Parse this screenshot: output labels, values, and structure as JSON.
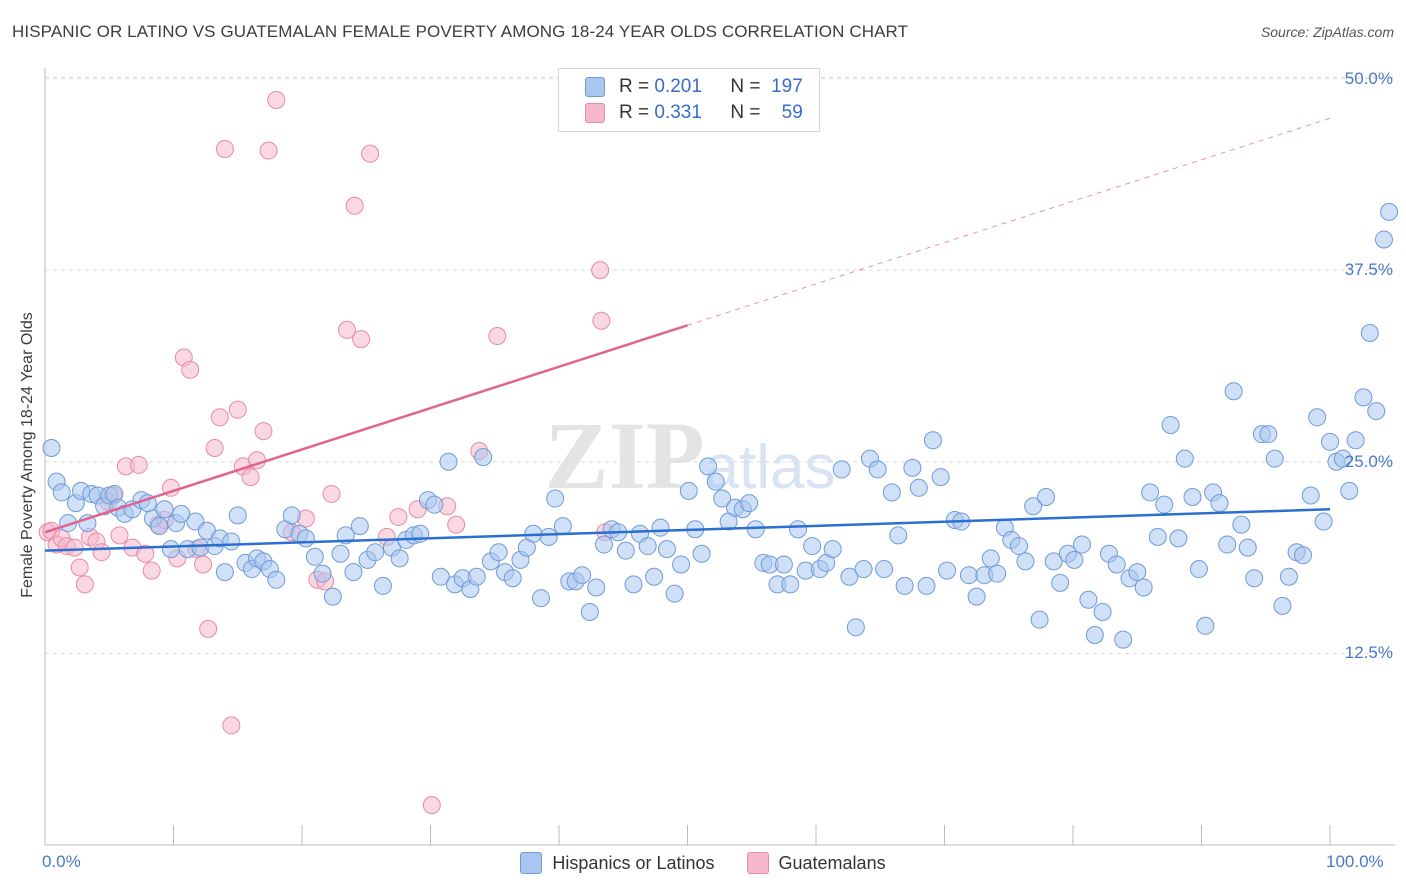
{
  "title": "HISPANIC OR LATINO VS GUATEMALAN FEMALE POVERTY AMONG 18-24 YEAR OLDS CORRELATION CHART",
  "source": "Source: ZipAtlas.com",
  "watermark": "ZIPatlas",
  "legend": {
    "r_label": "R =",
    "n_label": "N =",
    "rows": [
      {
        "r": "0.201",
        "n": "197",
        "color": "#a9c6f0"
      },
      {
        "r": "0.331",
        "n": "59",
        "color": "#f5b8cb"
      }
    ]
  },
  "bottom_legend": [
    {
      "label": "Hispanics or Latinos",
      "color": "#a9c6f0"
    },
    {
      "label": "Guatemalans",
      "color": "#f5b8cb"
    }
  ],
  "colors": {
    "blue_fill": "#a9c6f0",
    "blue_stroke": "#6f9bd8",
    "blue_line": "#2b6fd0",
    "pink_fill": "#f5b8cb",
    "pink_stroke": "#e88aa8",
    "pink_line": "#e0648f",
    "tick_text": "#4a78c8"
  },
  "chart_data": {
    "type": "scatter",
    "title": "HISPANIC OR LATINO VS GUATEMALAN FEMALE POVERTY AMONG 18-24 YEAR OLDS CORRELATION CHART",
    "xlabel": "",
    "ylabel": "Female Poverty Among 18-24 Year Olds",
    "xlim": [
      0,
      100
    ],
    "ylim": [
      0,
      52
    ],
    "x_tick_labels": [
      "0.0%",
      "100.0%"
    ],
    "y_ticks": [
      12.5,
      25.0,
      37.5,
      50.0
    ],
    "y_tick_labels": [
      "12.5%",
      "25.0%",
      "37.5%",
      "50.0%"
    ],
    "grid": "horizontal dashed",
    "legend_position": "top-center",
    "series": [
      {
        "name": "Hispanics or Latinos",
        "r": 0.201,
        "n": 197,
        "trend": [
          [
            0,
            19.2
          ],
          [
            100,
            21.9
          ]
        ],
        "points": [
          [
            0.5,
            25.9
          ],
          [
            0.9,
            23.7
          ],
          [
            1.3,
            23.0
          ],
          [
            1.8,
            21.0
          ],
          [
            2.4,
            22.3
          ],
          [
            2.8,
            23.1
          ],
          [
            3.3,
            21.0
          ],
          [
            3.6,
            22.9
          ],
          [
            4.1,
            22.8
          ],
          [
            4.6,
            22.1
          ],
          [
            5.0,
            22.8
          ],
          [
            5.4,
            22.9
          ],
          [
            5.7,
            22.0
          ],
          [
            6.2,
            21.6
          ],
          [
            6.8,
            21.9
          ],
          [
            7.5,
            22.5
          ],
          [
            8.0,
            22.3
          ],
          [
            8.4,
            21.3
          ],
          [
            8.9,
            20.8
          ],
          [
            9.3,
            21.9
          ],
          [
            9.8,
            19.3
          ],
          [
            10.2,
            21.0
          ],
          [
            10.6,
            21.6
          ],
          [
            11.1,
            19.3
          ],
          [
            11.7,
            21.1
          ],
          [
            12.1,
            19.4
          ],
          [
            12.6,
            20.5
          ],
          [
            13.2,
            19.5
          ],
          [
            13.6,
            20.0
          ],
          [
            14.0,
            17.8
          ],
          [
            14.5,
            19.8
          ],
          [
            15.0,
            21.5
          ],
          [
            15.6,
            18.4
          ],
          [
            16.1,
            18.0
          ],
          [
            16.5,
            18.7
          ],
          [
            17.0,
            18.5
          ],
          [
            17.5,
            18.0
          ],
          [
            18.0,
            17.3
          ],
          [
            18.7,
            20.6
          ],
          [
            19.2,
            21.5
          ],
          [
            19.8,
            20.3
          ],
          [
            20.3,
            20.0
          ],
          [
            21.0,
            18.8
          ],
          [
            21.6,
            17.7
          ],
          [
            22.4,
            16.2
          ],
          [
            23.0,
            19.0
          ],
          [
            23.4,
            20.2
          ],
          [
            24.0,
            17.8
          ],
          [
            24.5,
            20.8
          ],
          [
            25.1,
            18.6
          ],
          [
            25.7,
            19.1
          ],
          [
            26.3,
            16.9
          ],
          [
            27.0,
            19.4
          ],
          [
            27.6,
            18.7
          ],
          [
            28.1,
            19.9
          ],
          [
            28.7,
            20.2
          ],
          [
            29.2,
            20.3
          ],
          [
            29.8,
            22.5
          ],
          [
            30.3,
            22.2
          ],
          [
            30.8,
            17.5
          ],
          [
            31.4,
            25.0
          ],
          [
            31.9,
            17.0
          ],
          [
            32.5,
            17.4
          ],
          [
            33.1,
            16.7
          ],
          [
            33.6,
            17.5
          ],
          [
            34.1,
            25.3
          ],
          [
            34.7,
            18.5
          ],
          [
            35.3,
            19.1
          ],
          [
            35.8,
            17.8
          ],
          [
            36.4,
            17.4
          ],
          [
            37.0,
            18.6
          ],
          [
            37.5,
            19.4
          ],
          [
            38.0,
            20.3
          ],
          [
            38.6,
            16.1
          ],
          [
            39.2,
            20.1
          ],
          [
            39.7,
            22.6
          ],
          [
            40.3,
            20.8
          ],
          [
            40.8,
            17.2
          ],
          [
            41.3,
            17.2
          ],
          [
            41.8,
            17.6
          ],
          [
            42.4,
            15.2
          ],
          [
            42.9,
            16.8
          ],
          [
            43.5,
            19.6
          ],
          [
            44.1,
            20.6
          ],
          [
            44.6,
            20.4
          ],
          [
            45.2,
            19.2
          ],
          [
            45.8,
            17.0
          ],
          [
            46.3,
            20.3
          ],
          [
            46.9,
            19.5
          ],
          [
            47.4,
            17.5
          ],
          [
            47.9,
            20.7
          ],
          [
            48.4,
            19.3
          ],
          [
            49.0,
            16.4
          ],
          [
            49.5,
            18.3
          ],
          [
            50.1,
            23.1
          ],
          [
            50.6,
            20.6
          ],
          [
            51.1,
            19.0
          ],
          [
            51.6,
            24.7
          ],
          [
            52.2,
            23.7
          ],
          [
            52.7,
            22.6
          ],
          [
            53.2,
            21.1
          ],
          [
            53.7,
            22.0
          ],
          [
            54.3,
            21.9
          ],
          [
            54.8,
            22.3
          ],
          [
            55.3,
            20.6
          ],
          [
            55.9,
            18.4
          ],
          [
            56.4,
            18.3
          ],
          [
            57.0,
            17.0
          ],
          [
            57.5,
            18.3
          ],
          [
            58.0,
            17.0
          ],
          [
            58.6,
            20.6
          ],
          [
            59.2,
            17.9
          ],
          [
            59.7,
            19.5
          ],
          [
            60.3,
            18.0
          ],
          [
            60.8,
            18.4
          ],
          [
            61.3,
            19.3
          ],
          [
            62.0,
            24.5
          ],
          [
            62.6,
            17.5
          ],
          [
            63.1,
            14.2
          ],
          [
            63.7,
            18.0
          ],
          [
            64.2,
            25.2
          ],
          [
            64.8,
            24.5
          ],
          [
            65.3,
            18.0
          ],
          [
            65.9,
            23.0
          ],
          [
            66.4,
            20.2
          ],
          [
            66.9,
            16.9
          ],
          [
            67.5,
            24.6
          ],
          [
            68.0,
            23.3
          ],
          [
            68.6,
            16.9
          ],
          [
            69.1,
            26.4
          ],
          [
            69.7,
            24.0
          ],
          [
            70.2,
            17.9
          ],
          [
            70.8,
            21.2
          ],
          [
            71.3,
            21.1
          ],
          [
            71.9,
            17.6
          ],
          [
            72.5,
            16.2
          ],
          [
            73.1,
            17.6
          ],
          [
            73.6,
            18.7
          ],
          [
            74.1,
            17.7
          ],
          [
            74.7,
            20.7
          ],
          [
            75.2,
            19.9
          ],
          [
            75.8,
            19.5
          ],
          [
            76.3,
            18.5
          ],
          [
            76.9,
            22.1
          ],
          [
            77.4,
            14.7
          ],
          [
            77.9,
            22.7
          ],
          [
            78.5,
            18.5
          ],
          [
            79.0,
            17.1
          ],
          [
            79.6,
            19.0
          ],
          [
            80.1,
            18.6
          ],
          [
            80.7,
            19.6
          ],
          [
            81.2,
            16.0
          ],
          [
            81.7,
            13.7
          ],
          [
            82.3,
            15.2
          ],
          [
            82.8,
            19.0
          ],
          [
            83.4,
            18.3
          ],
          [
            83.9,
            13.4
          ],
          [
            84.4,
            17.4
          ],
          [
            85.0,
            17.8
          ],
          [
            85.5,
            16.8
          ],
          [
            86.0,
            23.0
          ],
          [
            86.6,
            20.1
          ],
          [
            87.1,
            22.2
          ],
          [
            87.6,
            27.4
          ],
          [
            88.2,
            20.0
          ],
          [
            88.7,
            25.2
          ],
          [
            89.3,
            22.7
          ],
          [
            89.8,
            18.0
          ],
          [
            90.3,
            14.3
          ],
          [
            90.9,
            23.0
          ],
          [
            91.4,
            22.3
          ],
          [
            92.0,
            19.6
          ],
          [
            92.5,
            29.6
          ],
          [
            93.1,
            20.9
          ],
          [
            93.6,
            19.4
          ],
          [
            94.1,
            17.4
          ],
          [
            94.7,
            26.8
          ],
          [
            95.2,
            26.8
          ],
          [
            95.7,
            25.2
          ],
          [
            96.3,
            15.6
          ],
          [
            96.8,
            17.5
          ],
          [
            97.4,
            19.1
          ],
          [
            97.9,
            18.9
          ],
          [
            98.5,
            22.8
          ],
          [
            99.0,
            27.9
          ],
          [
            99.5,
            21.1
          ],
          [
            100.0,
            26.3
          ],
          [
            100.5,
            25.0
          ],
          [
            101.0,
            25.2
          ],
          [
            101.5,
            23.1
          ],
          [
            102.0,
            26.4
          ],
          [
            102.6,
            29.2
          ],
          [
            103.1,
            33.4
          ],
          [
            103.6,
            28.3
          ],
          [
            104.2,
            39.5
          ],
          [
            104.6,
            41.3
          ]
        ]
      },
      {
        "name": "Guatemalans",
        "r": 0.331,
        "n": 59,
        "trend": [
          [
            0,
            20.4
          ],
          [
            50,
            33.9
          ]
        ],
        "trend_extended": [
          [
            50,
            33.9
          ],
          [
            100,
            47.4
          ]
        ],
        "points": [
          [
            0.2,
            20.4
          ],
          [
            0.5,
            20.5
          ],
          [
            0.9,
            19.6
          ],
          [
            1.3,
            20.0
          ],
          [
            1.7,
            19.5
          ],
          [
            2.3,
            19.4
          ],
          [
            2.7,
            18.1
          ],
          [
            3.1,
            17.0
          ],
          [
            3.5,
            20.1
          ],
          [
            4.0,
            19.8
          ],
          [
            4.4,
            19.1
          ],
          [
            4.9,
            22.4
          ],
          [
            5.3,
            22.8
          ],
          [
            5.8,
            20.2
          ],
          [
            6.3,
            24.7
          ],
          [
            6.8,
            19.4
          ],
          [
            7.3,
            24.8
          ],
          [
            7.8,
            19.0
          ],
          [
            8.3,
            17.9
          ],
          [
            8.8,
            20.9
          ],
          [
            9.3,
            21.2
          ],
          [
            9.8,
            23.3
          ],
          [
            10.3,
            18.7
          ],
          [
            10.8,
            31.8
          ],
          [
            11.3,
            31.0
          ],
          [
            11.8,
            19.3
          ],
          [
            12.3,
            18.3
          ],
          [
            12.7,
            14.1
          ],
          [
            13.2,
            25.9
          ],
          [
            13.6,
            27.9
          ],
          [
            14.0,
            45.4
          ],
          [
            14.5,
            7.8
          ],
          [
            15.0,
            28.4
          ],
          [
            15.4,
            24.7
          ],
          [
            16.0,
            24.0
          ],
          [
            16.5,
            25.1
          ],
          [
            17.0,
            27.0
          ],
          [
            17.4,
            45.3
          ],
          [
            18.0,
            48.6
          ],
          [
            19.2,
            20.4
          ],
          [
            20.3,
            21.3
          ],
          [
            21.2,
            17.3
          ],
          [
            21.8,
            17.2
          ],
          [
            22.3,
            22.9
          ],
          [
            23.5,
            33.6
          ],
          [
            24.1,
            41.7
          ],
          [
            24.6,
            33.0
          ],
          [
            25.3,
            45.1
          ],
          [
            26.6,
            20.1
          ],
          [
            27.5,
            21.4
          ],
          [
            29.0,
            21.9
          ],
          [
            30.1,
            2.6
          ],
          [
            31.3,
            22.1
          ],
          [
            32.0,
            20.9
          ],
          [
            33.8,
            25.7
          ],
          [
            35.2,
            33.2
          ],
          [
            43.2,
            37.5
          ],
          [
            43.3,
            34.2
          ],
          [
            43.6,
            20.4
          ]
        ]
      }
    ]
  }
}
